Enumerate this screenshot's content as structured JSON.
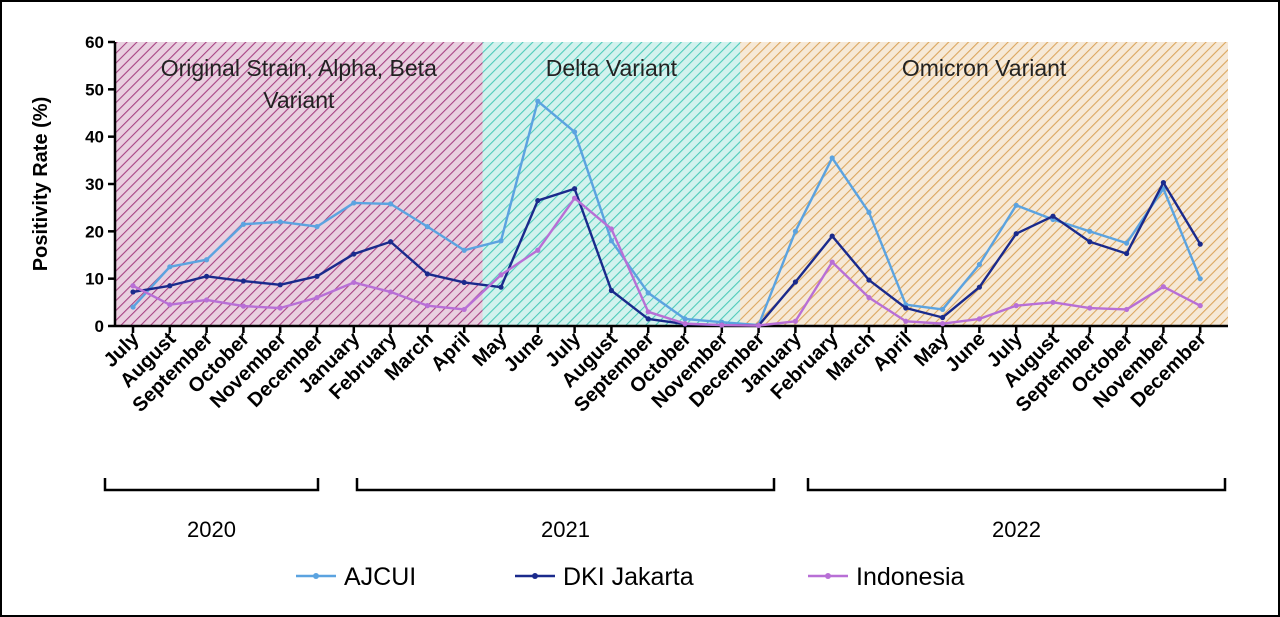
{
  "chart_data": {
    "type": "line",
    "ylabel": "Positivity Rate (%)",
    "ylim": [
      0,
      60
    ],
    "yticks": [
      0,
      10,
      20,
      30,
      40,
      50,
      60
    ],
    "x": [
      "July",
      "August",
      "September",
      "October",
      "November",
      "December",
      "January",
      "February",
      "March",
      "April",
      "May",
      "June",
      "July",
      "August",
      "September",
      "October",
      "November",
      "December",
      "January",
      "February",
      "March",
      "April",
      "May",
      "June",
      "July",
      "August",
      "September",
      "October",
      "November",
      "December"
    ],
    "series": [
      {
        "name": "AJCUI",
        "color": "#5ba3e0",
        "values": [
          4.0,
          12.5,
          14.0,
          21.5,
          22.0,
          21.0,
          26.0,
          25.8,
          21.0,
          16.0,
          18.0,
          47.5,
          41.0,
          18.0,
          7.0,
          1.5,
          0.8,
          0.2,
          20.0,
          35.5,
          24.0,
          4.5,
          3.5,
          13.0,
          25.5,
          22.5,
          20.0,
          17.5,
          29.0,
          10.0
        ]
      },
      {
        "name": "DKI Jakarta",
        "color": "#1a2a8c",
        "values": [
          7.2,
          8.5,
          10.5,
          9.5,
          8.7,
          10.5,
          15.2,
          17.8,
          11.0,
          9.2,
          8.2,
          26.5,
          29.0,
          7.5,
          1.5,
          0.4,
          0.2,
          0.1,
          9.3,
          19.0,
          9.7,
          3.8,
          1.8,
          8.2,
          19.5,
          23.2,
          17.8,
          15.3,
          30.3,
          17.3
        ]
      },
      {
        "name": "Indonesia",
        "color": "#b86fd6",
        "values": [
          8.5,
          4.5,
          5.5,
          4.2,
          3.8,
          6.0,
          9.2,
          7.2,
          4.3,
          3.5,
          10.8,
          16.0,
          27.0,
          20.5,
          3.0,
          0.5,
          0.2,
          0.1,
          1.0,
          13.5,
          6.0,
          1.0,
          0.5,
          1.5,
          4.3,
          5.0,
          3.8,
          3.5,
          8.3,
          4.3
        ]
      }
    ],
    "regions": [
      {
        "label_lines": [
          "Original Strain, Alpha, Beta",
          "Variant"
        ],
        "from": 0,
        "to": 9,
        "color": "#9b2a72"
      },
      {
        "label_lines": [
          "Delta Variant"
        ],
        "from": 9,
        "to": 16,
        "color": "#36c3b0"
      },
      {
        "label_lines": [
          "Omicron Variant"
        ],
        "from": 16,
        "to": 29,
        "color": "#d69a4a"
      }
    ],
    "years": [
      {
        "label": "2020",
        "from": 0,
        "to": 5
      },
      {
        "label": "2021",
        "from": 6,
        "to": 17
      },
      {
        "label": "2022",
        "from": 18,
        "to": 29
      }
    ],
    "legend_position": "bottom",
    "grid": false
  }
}
